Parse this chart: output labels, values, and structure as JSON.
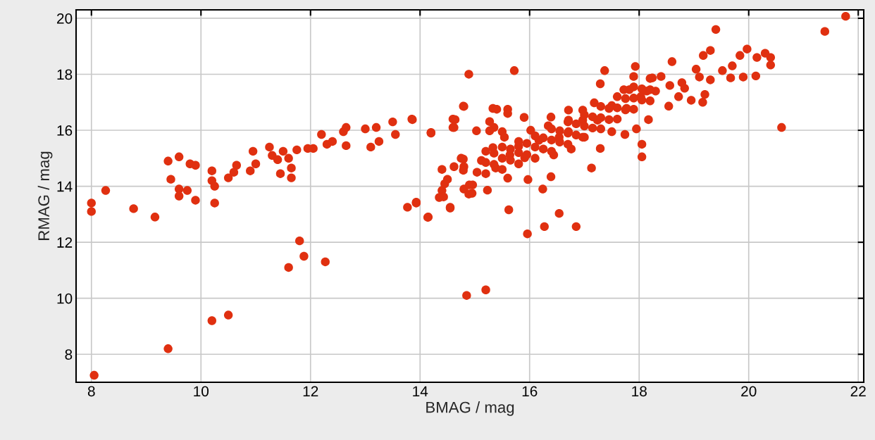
{
  "chart_data": {
    "type": "scatter",
    "xlabel": "BMAG / mag",
    "ylabel": "RMAG / mag",
    "xlim": [
      7.72,
      22.1
    ],
    "ylim": [
      7.0,
      20.3
    ],
    "xticks": [
      8,
      10,
      12,
      14,
      16,
      18,
      20,
      22
    ],
    "yticks": [
      8,
      10,
      12,
      14,
      16,
      18,
      20
    ],
    "grid": true,
    "marker": "circle",
    "legend": false,
    "series": [
      {
        "color": "#e03010",
        "x": [
          8.0,
          8.0,
          8.26,
          8.77,
          9.16,
          9.4,
          9.6,
          9.45,
          9.6,
          9.6,
          9.75,
          9.9,
          9.9,
          9.8,
          10.2,
          10.2,
          10.25,
          10.25,
          10.5,
          10.65,
          10.6,
          10.95,
          10.9,
          11.0,
          11.25,
          11.3,
          11.4,
          11.45,
          11.5,
          11.6,
          11.65,
          11.65,
          11.75,
          11.95,
          12.05,
          12.2,
          12.3,
          12.4,
          12.6,
          12.65,
          12.65,
          13.0,
          13.1,
          13.2,
          13.25,
          13.5,
          13.55,
          13.85,
          14.2,
          11.8,
          11.88,
          11.6,
          12.27,
          10.2,
          10.5,
          9.4,
          8.05,
          13.77,
          13.93,
          14.15,
          14.89,
          15.72,
          14.8,
          14.6,
          14.6,
          14.4,
          14.5,
          14.4,
          14.35,
          14.55,
          14.75,
          14.8,
          14.8,
          14.9,
          14.85,
          15.2,
          15.35,
          15.5,
          15.6,
          15.4,
          14.95,
          15.62,
          15.96,
          16.27,
          16.54,
          16.85,
          16.24,
          20.6,
          21.39,
          21.77,
          19.4,
          18.6,
          18.05,
          18.05,
          20.4,
          20.4,
          20.3,
          20.15,
          20.13,
          19.97,
          19.84,
          19.7,
          19.52,
          19.3,
          19.17,
          19.04,
          19.16,
          18.95,
          19.2,
          18.78,
          18.54,
          18.72,
          19.9,
          19.67,
          19.3,
          19.1,
          17.93,
          17.9,
          18.4,
          18.24,
          18.14,
          17.82,
          17.37,
          17.29,
          17.72,
          17.18,
          16.97,
          16.71,
          16.39,
          16.02,
          15.54,
          15.33,
          15.12,
          15.38,
          15.04,
          15.6,
          15.97,
          16.39,
          17.13,
          17.29,
          17.74,
          17.95,
          18.17,
          17.5,
          16.97,
          16.44,
          15.91,
          15.64,
          16.17,
          16.71,
          17.24,
          17.77,
          18.03,
          18.3,
          18.56,
          18.83,
          16.34,
          16.76,
          16.54,
          15.8,
          16.97,
          17.5,
          16.71,
          14.64,
          14.62,
          14.79,
          14.2,
          13.86,
          15.03,
          15.27,
          15.27,
          15.33,
          15.6,
          15.9,
          14.79,
          14.62,
          14.79,
          14.45,
          14.43,
          14.55,
          14.96,
          14.89,
          15.23,
          13.93,
          14.14,
          15.2,
          15.2,
          15.2,
          15.5,
          15.5,
          15.5,
          15.8,
          15.8,
          15.8,
          16.1,
          16.1,
          16.1,
          16.4,
          16.4,
          16.4,
          16.7,
          16.7,
          16.7,
          17.0,
          17.0,
          17.0,
          17.3,
          17.3,
          17.3,
          17.6,
          17.6,
          17.6,
          17.9,
          17.9,
          17.9,
          18.2,
          18.2,
          18.2,
          15.35,
          15.35,
          15.65,
          15.65,
          15.95,
          15.95,
          16.25,
          16.25,
          16.55,
          16.55,
          16.85,
          16.85,
          17.15,
          17.15,
          17.45,
          17.45,
          17.75,
          17.75,
          18.05,
          18.05
        ],
        "values": [
          13.4,
          13.1,
          13.85,
          13.2,
          12.9,
          14.9,
          15.05,
          14.25,
          13.9,
          13.65,
          13.85,
          14.75,
          13.5,
          14.8,
          14.55,
          14.2,
          14.0,
          13.4,
          14.3,
          14.75,
          14.5,
          15.25,
          14.55,
          14.8,
          15.4,
          15.1,
          14.95,
          14.45,
          15.25,
          15.0,
          14.65,
          14.3,
          15.3,
          15.35,
          15.35,
          15.85,
          15.5,
          15.6,
          15.95,
          16.1,
          15.45,
          16.05,
          15.4,
          16.1,
          15.6,
          16.3,
          15.85,
          16.4,
          15.9,
          12.05,
          11.5,
          11.1,
          11.3,
          9.2,
          9.4,
          8.2,
          7.25,
          13.25,
          13.4,
          12.9,
          18.0,
          18.13,
          16.85,
          16.1,
          16.4,
          14.6,
          14.25,
          13.85,
          13.6,
          13.25,
          15.0,
          14.7,
          13.9,
          14.05,
          10.1,
          10.3,
          16.1,
          15.95,
          16.75,
          16.75,
          13.75,
          13.16,
          12.3,
          12.56,
          13.03,
          12.56,
          13.9,
          16.1,
          19.53,
          20.07,
          19.6,
          18.45,
          15.5,
          15.05,
          18.33,
          18.6,
          18.75,
          18.6,
          17.94,
          18.9,
          18.67,
          18.3,
          18.13,
          18.85,
          18.67,
          18.18,
          17.0,
          17.07,
          17.28,
          17.7,
          16.86,
          17.2,
          17.9,
          17.87,
          17.8,
          17.9,
          18.28,
          17.92,
          17.92,
          17.87,
          17.4,
          17.45,
          18.13,
          17.66,
          17.45,
          16.98,
          16.72,
          16.72,
          16.47,
          16.0,
          15.75,
          15.38,
          14.92,
          14.65,
          14.5,
          14.29,
          14.24,
          14.34,
          14.65,
          15.35,
          15.85,
          16.05,
          16.38,
          15.95,
          15.75,
          15.12,
          15.02,
          15.12,
          15.64,
          15.95,
          16.36,
          16.78,
          17.2,
          17.4,
          17.6,
          17.5,
          16.16,
          15.33,
          15.75,
          15.43,
          16.36,
          16.88,
          16.36,
          16.38,
          16.1,
          16.86,
          15.92,
          16.38,
          15.98,
          16.31,
          15.98,
          16.78,
          16.6,
          16.46,
          14.97,
          14.7,
          14.57,
          14.09,
          13.62,
          13.22,
          14.05,
          13.72,
          13.86,
          13.43,
          12.89,
          14.45,
          14.85,
          15.25,
          14.6,
          15.0,
          15.4,
          14.8,
          15.2,
          15.6,
          15.0,
          15.4,
          15.8,
          15.25,
          15.65,
          16.05,
          15.5,
          15.9,
          16.3,
          15.75,
          16.15,
          16.55,
          16.05,
          16.45,
          16.85,
          16.4,
          16.8,
          17.2,
          16.75,
          17.15,
          17.55,
          17.05,
          17.45,
          17.85,
          14.78,
          15.18,
          14.93,
          15.33,
          15.13,
          15.53,
          15.33,
          15.73,
          15.58,
          15.98,
          15.83,
          16.23,
          16.08,
          16.48,
          16.38,
          16.78,
          16.73,
          17.13,
          17.08,
          17.48
        ]
      }
    ]
  }
}
